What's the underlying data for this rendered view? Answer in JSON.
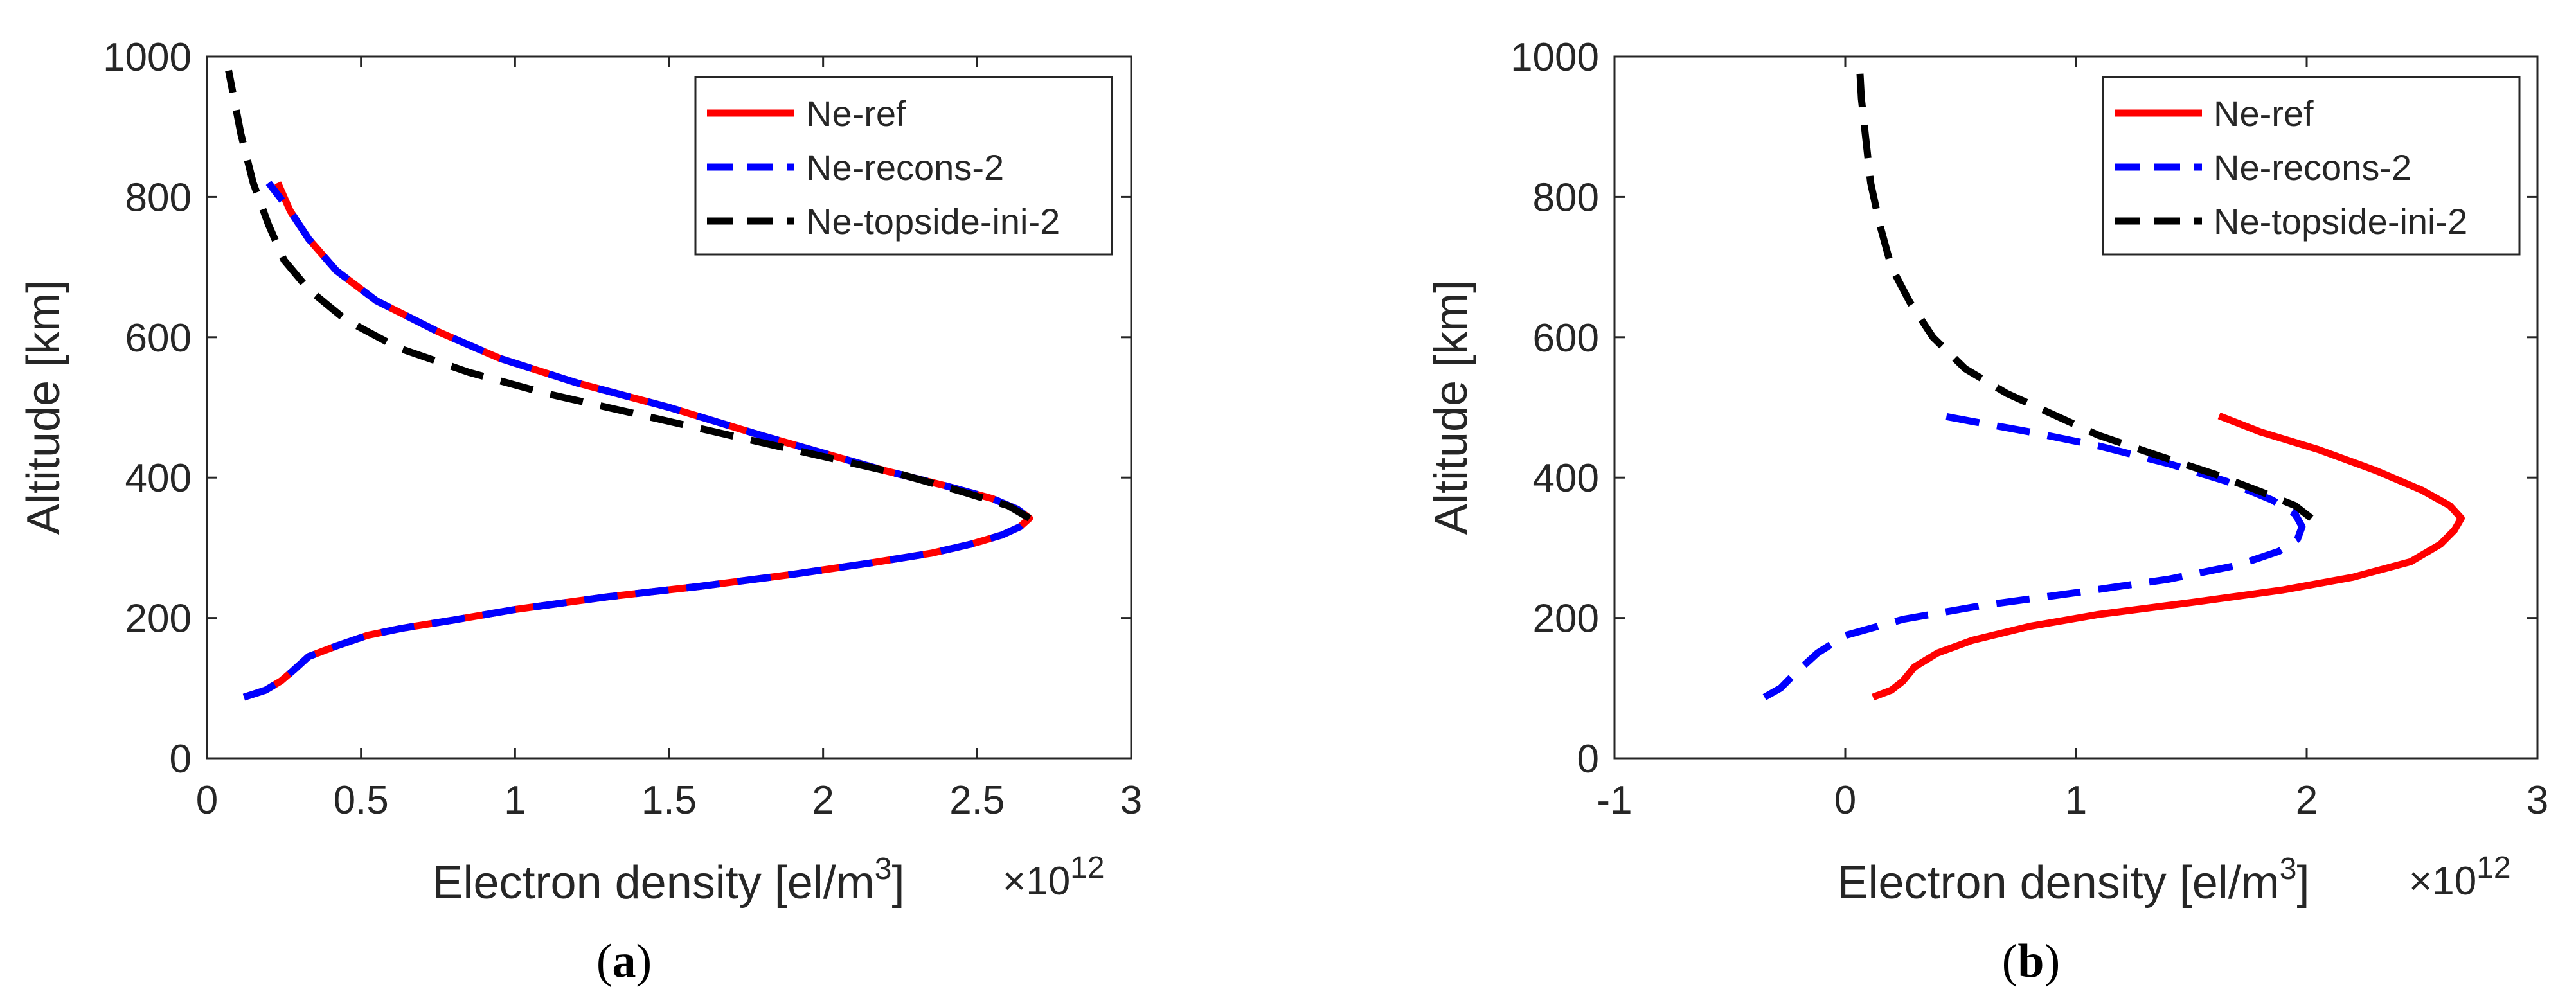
{
  "chart_data": [
    {
      "type": "line",
      "panel_label": {
        "open": "(",
        "letter": "a",
        "close": ")"
      },
      "xlabel": {
        "main": "Electron density [el/m",
        "sup": "3",
        "tail": "]"
      },
      "ylabel": "Altitude [km]",
      "x_exponent": {
        "base": "×10",
        "power": "12"
      },
      "xlim": [
        0,
        3
      ],
      "ylim": [
        0,
        1000
      ],
      "xticks": [
        0,
        0.5,
        1,
        1.5,
        2,
        2.5,
        3
      ],
      "xtick_labels": [
        "0",
        "0.5",
        "1",
        "1.5",
        "2",
        "2.5",
        "3"
      ],
      "yticks": [
        0,
        200,
        400,
        600,
        800,
        1000
      ],
      "ytick_labels": [
        "0",
        "200",
        "400",
        "600",
        "800",
        "1000"
      ],
      "legend_position": "top-right",
      "series": [
        {
          "name": "Ne-ref",
          "color": "#ff0000",
          "dash": "solid",
          "points": [
            [
              0.12,
              87
            ],
            [
              0.19,
              97
            ],
            [
              0.24,
              110
            ],
            [
              0.28,
              125
            ],
            [
              0.33,
              145
            ],
            [
              0.42,
              160
            ],
            [
              0.52,
              175
            ],
            [
              0.63,
              185
            ],
            [
              0.8,
              197
            ],
            [
              1.0,
              212
            ],
            [
              1.3,
              230
            ],
            [
              1.6,
              245
            ],
            [
              1.9,
              262
            ],
            [
              2.15,
              278
            ],
            [
              2.35,
              292
            ],
            [
              2.48,
              305
            ],
            [
              2.58,
              318
            ],
            [
              2.64,
              330
            ],
            [
              2.67,
              342
            ],
            [
              2.63,
              355
            ],
            [
              2.55,
              370
            ],
            [
              2.4,
              388
            ],
            [
              2.2,
              410
            ],
            [
              2.0,
              435
            ],
            [
              1.8,
              460
            ],
            [
              1.5,
              500
            ],
            [
              1.2,
              535
            ],
            [
              0.95,
              570
            ],
            [
              0.75,
              608
            ],
            [
              0.55,
              652
            ],
            [
              0.42,
              695
            ],
            [
              0.33,
              740
            ],
            [
              0.27,
              780
            ],
            [
              0.23,
              820
            ]
          ]
        },
        {
          "name": "Ne-recons-2",
          "color": "#0000ff",
          "dash": "dashed",
          "points": [
            [
              0.12,
              87
            ],
            [
              0.19,
              97
            ],
            [
              0.24,
              110
            ],
            [
              0.28,
              125
            ],
            [
              0.33,
              145
            ],
            [
              0.42,
              160
            ],
            [
              0.52,
              175
            ],
            [
              0.63,
              185
            ],
            [
              0.8,
              197
            ],
            [
              1.0,
              212
            ],
            [
              1.3,
              230
            ],
            [
              1.6,
              245
            ],
            [
              1.9,
              262
            ],
            [
              2.15,
              278
            ],
            [
              2.35,
              292
            ],
            [
              2.48,
              305
            ],
            [
              2.58,
              318
            ],
            [
              2.64,
              330
            ],
            [
              2.67,
              342
            ],
            [
              2.63,
              355
            ],
            [
              2.55,
              370
            ],
            [
              2.4,
              388
            ],
            [
              2.2,
              410
            ],
            [
              2.0,
              435
            ],
            [
              1.8,
              460
            ],
            [
              1.5,
              500
            ],
            [
              1.2,
              535
            ],
            [
              0.95,
              570
            ],
            [
              0.75,
              608
            ],
            [
              0.55,
              652
            ],
            [
              0.42,
              695
            ],
            [
              0.33,
              740
            ],
            [
              0.27,
              780
            ],
            [
              0.2,
              820
            ]
          ]
        },
        {
          "name": "Ne-topside-ini-2",
          "color": "#000000",
          "dash": "dashed",
          "points": [
            [
              2.67,
              342
            ],
            [
              2.6,
              360
            ],
            [
              2.45,
              380
            ],
            [
              2.25,
              405
            ],
            [
              2.0,
              430
            ],
            [
              1.7,
              460
            ],
            [
              1.4,
              490
            ],
            [
              1.1,
              520
            ],
            [
              0.85,
              550
            ],
            [
              0.62,
              585
            ],
            [
              0.45,
              625
            ],
            [
              0.33,
              668
            ],
            [
              0.25,
              710
            ],
            [
              0.2,
              760
            ],
            [
              0.15,
              820
            ],
            [
              0.11,
              890
            ],
            [
              0.07,
              980
            ]
          ]
        }
      ]
    },
    {
      "type": "line",
      "panel_label": {
        "open": "(",
        "letter": "b",
        "close": ")"
      },
      "xlabel": {
        "main": "Electron density [el/m",
        "sup": "3",
        "tail": "]"
      },
      "ylabel": "Altitude [km]",
      "x_exponent": {
        "base": "×10",
        "power": "12"
      },
      "xlim": [
        -1,
        3
      ],
      "ylim": [
        0,
        1000
      ],
      "xticks": [
        -1,
        0,
        1,
        2,
        3
      ],
      "xtick_labels": [
        "-1",
        "0",
        "1",
        "2",
        "3"
      ],
      "yticks": [
        0,
        200,
        400,
        600,
        800,
        1000
      ],
      "ytick_labels": [
        "0",
        "200",
        "400",
        "600",
        "800",
        "1000"
      ],
      "legend_position": "top-right",
      "series": [
        {
          "name": "Ne-ref",
          "color": "#ff0000",
          "dash": "solid",
          "points": [
            [
              0.12,
              87
            ],
            [
              0.2,
              97
            ],
            [
              0.25,
              110
            ],
            [
              0.3,
              130
            ],
            [
              0.4,
              150
            ],
            [
              0.55,
              168
            ],
            [
              0.8,
              188
            ],
            [
              1.1,
              205
            ],
            [
              1.5,
              222
            ],
            [
              1.9,
              240
            ],
            [
              2.2,
              258
            ],
            [
              2.45,
              280
            ],
            [
              2.58,
              305
            ],
            [
              2.64,
              325
            ],
            [
              2.67,
              342
            ],
            [
              2.62,
              360
            ],
            [
              2.5,
              382
            ],
            [
              2.3,
              410
            ],
            [
              2.05,
              440
            ],
            [
              1.8,
              465
            ],
            [
              1.62,
              488
            ]
          ]
        },
        {
          "name": "Ne-recons-2",
          "color": "#0000ff",
          "dash": "dashed",
          "points": [
            [
              -0.35,
              87
            ],
            [
              -0.28,
              100
            ],
            [
              -0.22,
              120
            ],
            [
              -0.12,
              150
            ],
            [
              0.0,
              175
            ],
            [
              0.25,
              198
            ],
            [
              0.6,
              218
            ],
            [
              1.0,
              236
            ],
            [
              1.4,
              255
            ],
            [
              1.7,
              275
            ],
            [
              1.88,
              295
            ],
            [
              1.96,
              312
            ],
            [
              1.98,
              330
            ],
            [
              1.95,
              348
            ],
            [
              1.85,
              368
            ],
            [
              1.65,
              395
            ],
            [
              1.4,
              420
            ],
            [
              1.1,
              445
            ],
            [
              0.8,
              465
            ],
            [
              0.55,
              480
            ],
            [
              0.42,
              488
            ]
          ]
        },
        {
          "name": "Ne-topside-ini-2",
          "color": "#000000",
          "dash": "dashed",
          "points": [
            [
              2.02,
              342
            ],
            [
              1.95,
              360
            ],
            [
              1.8,
              380
            ],
            [
              1.6,
              405
            ],
            [
              1.35,
              432
            ],
            [
              1.1,
              460
            ],
            [
              0.9,
              490
            ],
            [
              0.7,
              520
            ],
            [
              0.52,
              555
            ],
            [
              0.38,
              600
            ],
            [
              0.28,
              650
            ],
            [
              0.2,
              700
            ],
            [
              0.15,
              760
            ],
            [
              0.11,
              820
            ],
            [
              0.09,
              880
            ],
            [
              0.07,
              940
            ],
            [
              0.06,
              1000
            ]
          ]
        }
      ]
    }
  ]
}
